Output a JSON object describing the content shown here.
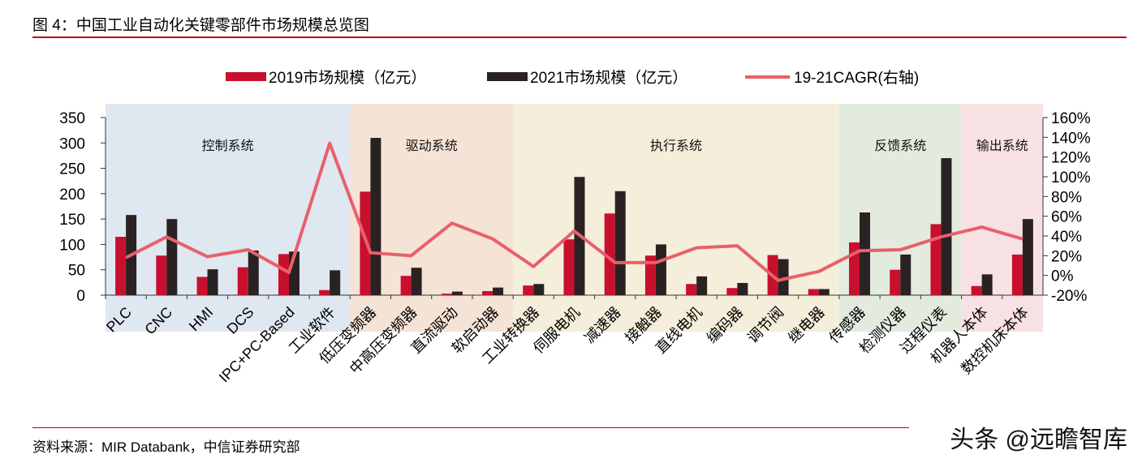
{
  "title": "图 4：中国工业自动化关键零部件市场规模总览图",
  "source": "资料来源：MIR Databank，中信证券研究部",
  "watermark": "头条 @远瞻智库",
  "chart_data": {
    "type": "bar+line",
    "categories": [
      "PLC",
      "CNC",
      "HMI",
      "DCS",
      "IPC+PC-Based",
      "工业软件",
      "低压变频器",
      "中高压变频器",
      "直流驱动",
      "软启动器",
      "工业转换器",
      "伺服电机",
      "减速器",
      "接触器",
      "直线电机",
      "编码器",
      "调节阀",
      "继电器",
      "传感器",
      "检测仪器",
      "过程仪表",
      "机器人本体",
      "数控机床本体"
    ],
    "series": [
      {
        "name": "2019市场规模（亿元）",
        "type": "bar",
        "axis": "left",
        "color": "#c8102e",
        "values": [
          115,
          78,
          36,
          55,
          81,
          10,
          204,
          38,
          3,
          8,
          19,
          110,
          161,
          78,
          22,
          14,
          79,
          12,
          104,
          50,
          140,
          18,
          80
        ]
      },
      {
        "name": "2021市场规模（亿元）",
        "type": "bar",
        "axis": "left",
        "color": "#2a2222",
        "values": [
          158,
          150,
          51,
          88,
          86,
          49,
          310,
          54,
          7,
          15,
          22,
          233,
          205,
          100,
          37,
          24,
          71,
          12,
          163,
          80,
          270,
          41,
          150
        ]
      },
      {
        "name": "19-21CAGR(右轴)",
        "type": "line",
        "axis": "right",
        "color": "#e8606a",
        "values": [
          18,
          39,
          19,
          26,
          3,
          134,
          23,
          20,
          53,
          37,
          9,
          45,
          13,
          13,
          28,
          30,
          -5,
          4,
          25,
          26,
          39,
          49,
          37
        ]
      }
    ],
    "yleft": {
      "ticks": [
        0,
        50,
        100,
        150,
        200,
        250,
        300,
        350
      ],
      "range": [
        0,
        350
      ]
    },
    "yright": {
      "ticks": [
        "-20%",
        "0%",
        "20%",
        "40%",
        "60%",
        "80%",
        "100%",
        "120%",
        "140%",
        "160%"
      ],
      "range": [
        -20,
        160
      ]
    },
    "groups": [
      {
        "label": "控制系统",
        "from": 0,
        "to": 5,
        "color": "#dfe7f1"
      },
      {
        "label": "驱动系统",
        "from": 6,
        "to": 9,
        "color": "#f5e3d6"
      },
      {
        "label": "执行系统",
        "from": 10,
        "to": 17,
        "color": "#f5eeda"
      },
      {
        "label": "反馈系统",
        "from": 18,
        "to": 20,
        "color": "#e3ebde"
      },
      {
        "label": "输出系统",
        "from": 21,
        "to": 22,
        "color": "#f8e1e3"
      }
    ],
    "legend": "top"
  }
}
